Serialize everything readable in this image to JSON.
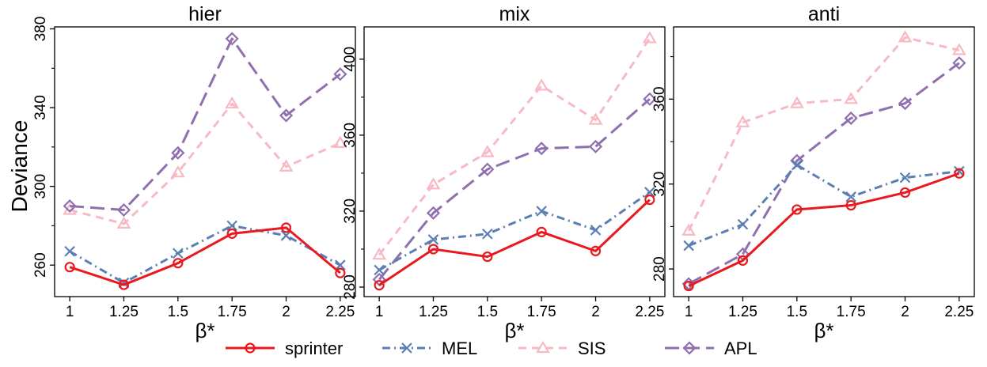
{
  "figure": {
    "ylabel": "Deviance",
    "xlabel": "β*"
  },
  "legend": {
    "placement": "bottom-center",
    "entries": [
      {
        "label": "sprinter",
        "color": "#e8191f",
        "marker": "circle",
        "dash": "solid"
      },
      {
        "label": "MEL",
        "color": "#5b7fb5",
        "marker": "x",
        "dash": "dashdot"
      },
      {
        "label": "SIS",
        "color": "#f7b9c4",
        "marker": "triangle",
        "dash": "dashed"
      },
      {
        "label": "APL",
        "color": "#8f6fae",
        "marker": "diamond",
        "dash": "longdash"
      }
    ]
  },
  "chart_data": [
    {
      "type": "line",
      "title": "hier",
      "x": [
        1,
        1.25,
        1.5,
        1.75,
        2,
        2.25
      ],
      "xtick_labels": [
        "1",
        "1.25",
        "1.5",
        "1.75",
        "2",
        "2.25"
      ],
      "xlim": [
        0.93,
        2.32
      ],
      "ylim": [
        244,
        381
      ],
      "yticks": [
        260,
        300,
        340,
        380
      ],
      "ytick_labels": [
        "260",
        "300",
        "340",
        "380"
      ],
      "series": [
        {
          "name": "sprinter",
          "values": [
            259,
            250,
            261,
            276,
            279,
            256
          ]
        },
        {
          "name": "MEL",
          "values": [
            267,
            251,
            266,
            280,
            275,
            260
          ]
        },
        {
          "name": "SIS",
          "values": [
            288,
            281,
            307,
            342,
            310,
            322
          ]
        },
        {
          "name": "APL",
          "values": [
            290,
            288,
            317,
            375,
            336,
            357
          ]
        }
      ]
    },
    {
      "type": "line",
      "title": "mix",
      "x": [
        1,
        1.25,
        1.5,
        1.75,
        2,
        2.25
      ],
      "xtick_labels": [
        "1",
        "1.25",
        "1.5",
        "1.75",
        "2",
        "2.25"
      ],
      "xlim": [
        0.93,
        2.32
      ],
      "ylim": [
        275,
        417
      ],
      "yticks": [
        280,
        320,
        360,
        400
      ],
      "ytick_labels": [
        "280",
        "320",
        "360",
        "400"
      ],
      "series": [
        {
          "name": "sprinter",
          "values": [
            281,
            300,
            296,
            309,
            299,
            326
          ]
        },
        {
          "name": "MEL",
          "values": [
            289,
            305,
            308,
            320,
            310,
            330
          ]
        },
        {
          "name": "SIS",
          "values": [
            297,
            334,
            351,
            386,
            368,
            411
          ]
        },
        {
          "name": "APL",
          "values": [
            284,
            319,
            342,
            353,
            354,
            379
          ]
        }
      ]
    },
    {
      "type": "line",
      "title": "anti",
      "x": [
        1,
        1.25,
        1.5,
        1.75,
        2,
        2.25
      ],
      "xtick_labels": [
        "1",
        "1.25",
        "1.5",
        "1.75",
        "2",
        "2.25"
      ],
      "xlim": [
        0.93,
        2.32
      ],
      "ylim": [
        267,
        394
      ],
      "yticks": [
        280,
        320,
        360
      ],
      "ytick_labels": [
        "280",
        "320",
        "360"
      ],
      "series": [
        {
          "name": "sprinter",
          "values": [
            272,
            284,
            308,
            310,
            316,
            325
          ]
        },
        {
          "name": "MEL",
          "values": [
            291,
            301,
            329,
            314,
            323,
            326
          ]
        },
        {
          "name": "SIS",
          "values": [
            298,
            349,
            358,
            360,
            389,
            383
          ]
        },
        {
          "name": "APL",
          "values": [
            273,
            287,
            331,
            351,
            358,
            377
          ]
        }
      ]
    }
  ]
}
